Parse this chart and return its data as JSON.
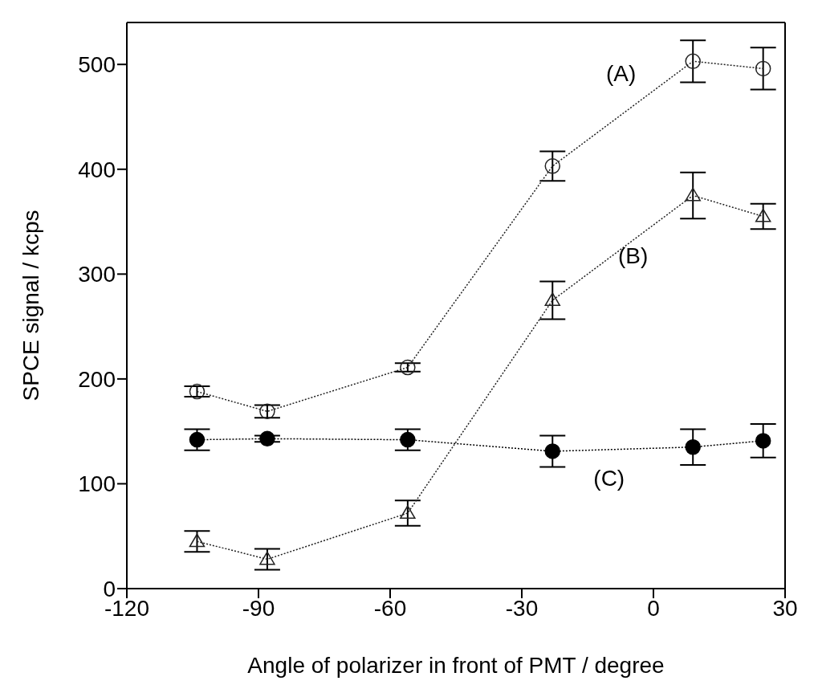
{
  "chart_data": {
    "type": "line",
    "xlabel": "Angle of polarizer in front of PMT / degree",
    "ylabel": "SPCE signal / kcps",
    "x": [
      -104,
      -88,
      -56,
      -23,
      9,
      25
    ],
    "xlim": [
      -120,
      30
    ],
    "xticks": [
      -120,
      -90,
      -60,
      -30,
      0,
      30
    ],
    "ylim": [
      0,
      540
    ],
    "yticks": [
      0,
      100,
      200,
      300,
      400,
      500
    ],
    "legend": false,
    "line_style": "dotted",
    "series": [
      {
        "name": "(A)",
        "color": "#222222",
        "marker": "circle",
        "values": [
          188,
          169,
          211,
          403,
          503,
          496
        ],
        "errors": [
          5,
          6,
          4,
          14,
          20,
          20
        ]
      },
      {
        "name": "(B)",
        "color": "#222222",
        "marker": "triangle",
        "values": [
          45,
          28,
          72,
          275,
          375,
          355
        ],
        "errors": [
          10,
          10,
          12,
          18,
          22,
          12
        ]
      },
      {
        "name": "(C)",
        "color": "#000000",
        "marker": "circle",
        "values": [
          142,
          143,
          142,
          131,
          135,
          141
        ],
        "errors": [
          10,
          3,
          10,
          15,
          17,
          16
        ]
      }
    ]
  }
}
